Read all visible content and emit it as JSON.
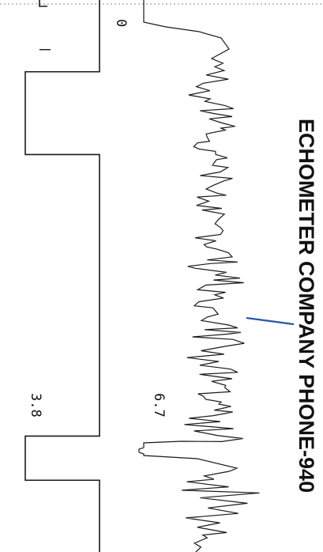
{
  "chart_data": {
    "type": "line",
    "title": "",
    "header_text": "ECHOMETER COMPANY  PHONE-940",
    "orientation": "rotated-90",
    "grid": false,
    "labels": {
      "zero": "0",
      "left_trace_value": "3.8",
      "right_trace_value": "6.7"
    },
    "series": [
      {
        "trace": "square-wave",
        "color": "#1a1a1a",
        "levels": [
          0,
          1
        ],
        "transitions": [
          0.0,
          0.13,
          0.28,
          0.79,
          0.87
        ]
      },
      {
        "trace": "acoustic",
        "color": "#1a1a1a",
        "baseline": 0,
        "amplitude_scale": 1.0
      }
    ],
    "marker": {
      "color": "#2a56a8"
    }
  }
}
